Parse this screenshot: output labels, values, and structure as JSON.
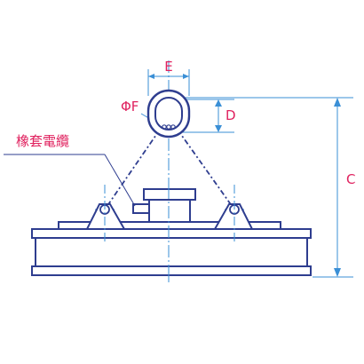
{
  "labels": {
    "e": "E",
    "f": "ΦF",
    "d": "D",
    "c": "C",
    "cable": "橡套電纜"
  },
  "colors": {
    "outline": "#2e3d8f",
    "dimension": "#3a8fd6",
    "label_text": "#e0225f",
    "dim_text": "#e0225f",
    "background": "#ffffff"
  }
}
